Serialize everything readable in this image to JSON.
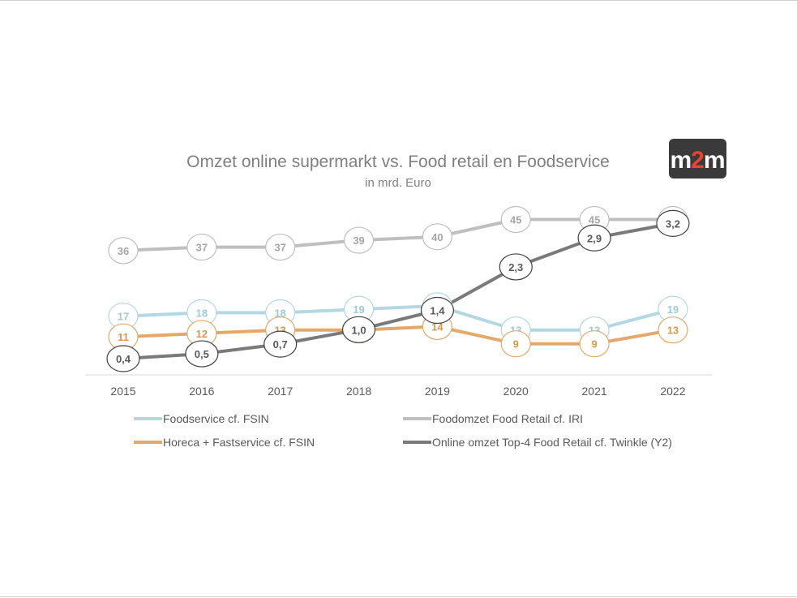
{
  "chart_data": {
    "type": "line",
    "title": "Omzet online supermarkt vs. Food retail en Foodservice",
    "subtitle": "in mrd. Euro",
    "categories": [
      "2015",
      "2016",
      "2017",
      "2018",
      "2019",
      "2020",
      "2021",
      "2022"
    ],
    "series": [
      {
        "name": "Foodomzet Food Retail cf. IRI",
        "axis": "y1",
        "color": "#bfbfbf",
        "label_color": "#a6a6a6",
        "values": [
          36,
          37,
          37,
          39,
          40,
          45,
          45,
          45
        ],
        "labels": [
          "36",
          "37",
          "37",
          "39",
          "40",
          "45",
          "45",
          "45"
        ]
      },
      {
        "name": "Foodservice cf. FSIN",
        "axis": "y1",
        "color": "#b4d7e4",
        "label_color": "#9ccbdc",
        "values": [
          17,
          18,
          18,
          19,
          20,
          13,
          13,
          19
        ],
        "labels": [
          "17",
          "18",
          "18",
          "19",
          "20",
          "13",
          "13",
          "19"
        ]
      },
      {
        "name": "Horeca + Fastservice cf. FSIN",
        "axis": "y1",
        "color": "#e3a96c",
        "label_color": "#d9974f",
        "values": [
          11,
          12,
          13,
          13,
          14,
          9,
          9,
          13
        ],
        "labels": [
          "11",
          "12",
          "13",
          "13",
          "14",
          "9",
          "9",
          "13"
        ]
      },
      {
        "name": "Online omzet Top-4 Food Retail cf. Twinkle (Y2)",
        "axis": "y2",
        "color": "#7a7a7a",
        "label_color": "#595959",
        "values": [
          0.4,
          0.5,
          0.7,
          1.0,
          1.4,
          2.3,
          2.9,
          3.2
        ],
        "labels": [
          "0,4",
          "0,5",
          "0,7",
          "1,0",
          "1,4",
          "2,3",
          "2,9",
          "3,2"
        ]
      }
    ],
    "y1_range": [
      0,
      50
    ],
    "y2_range": [
      0.2,
      3.6
    ],
    "legend_position": "bottom",
    "grid": false,
    "legend": [
      {
        "series": 1,
        "label": "Foodservice cf. FSIN"
      },
      {
        "series": 0,
        "label": "Foodomzet Food Retail cf. IRI"
      },
      {
        "series": 2,
        "label": "Horeca + Fastservice cf. FSIN"
      },
      {
        "series": 3,
        "label": "Online omzet Top-4 Food Retail cf. Twinkle (Y2)"
      }
    ]
  },
  "logo": {
    "text": "m2m",
    "accent_text": "2",
    "background": "#3a3a3a",
    "accent_color": "#e8452c"
  }
}
